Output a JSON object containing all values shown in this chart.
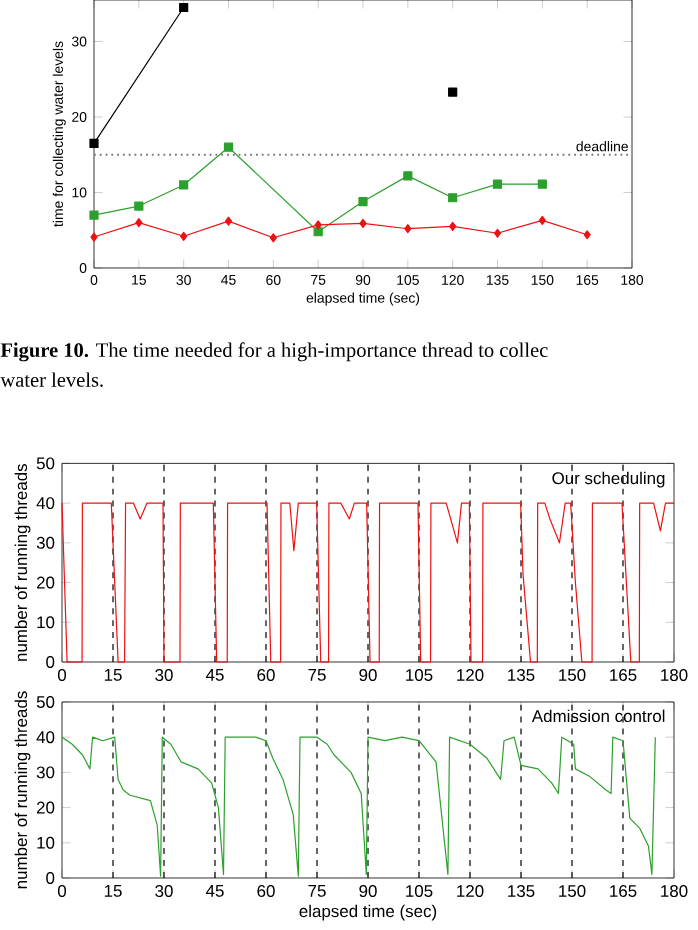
{
  "chart_data": [
    {
      "type": "line",
      "xlabel": "elapsed time (sec)",
      "ylabel": "time for collecting water levels",
      "xlim": [
        0,
        180
      ],
      "ylim": [
        0,
        35.5
      ],
      "xticks": [
        0,
        15,
        30,
        45,
        60,
        75,
        90,
        105,
        120,
        135,
        150,
        165,
        180
      ],
      "yticks": [
        0,
        10,
        20,
        30
      ],
      "x": [
        0,
        15,
        30,
        45,
        60,
        75,
        90,
        105,
        120,
        135,
        150,
        165
      ],
      "series": [
        {
          "color": "#000000",
          "marker": "square",
          "x": [
            0,
            30,
            45,
            105,
            120
          ],
          "values": [
            16.5,
            34.5,
            null,
            null,
            23.3
          ]
        },
        {
          "color": "#2ca02c",
          "marker": "square",
          "x": [
            0,
            15,
            30,
            45,
            75,
            90,
            105,
            120,
            135,
            150
          ],
          "values": [
            7,
            8.2,
            11,
            16,
            4.8,
            8.8,
            12.2,
            9.3,
            11.1,
            11.1
          ]
        },
        {
          "color": "#ee1111",
          "marker": "diamond",
          "values": [
            4.1,
            6,
            4.2,
            6.2,
            4,
            5.7,
            5.9,
            5.2,
            5.5,
            4.6,
            6.3,
            4.4
          ]
        }
      ],
      "ref_lines": [
        {
          "axis": "y",
          "value": 15,
          "label": "deadline",
          "color": "#777777",
          "line_style": "dotted"
        }
      ],
      "annotations": [
        "**Figure 10.** The time needed for a high-importance thread to collec",
        "water levels."
      ]
    },
    {
      "type": "line",
      "ylabel": "number of running threads",
      "xlim": [
        0,
        180
      ],
      "ylim": [
        0,
        50
      ],
      "xticks": [
        0,
        15,
        30,
        45,
        60,
        75,
        90,
        105,
        120,
        135,
        150,
        165,
        180
      ],
      "yticks": [
        0,
        10,
        20,
        30,
        40,
        50
      ],
      "marker": "none",
      "series": [
        {
          "name": "Our scheduling",
          "color": "#ee1111",
          "x": [
            0,
            1.5,
            5.9,
            6,
            14.5,
            16.5,
            18.4,
            18.7,
            21,
            23,
            25,
            29.7,
            30,
            34.7,
            34.8,
            44.5,
            45.5,
            48.6,
            48.7,
            60.3,
            61.4,
            64.3,
            64.4,
            67,
            68.2,
            69.5,
            74.9,
            76.1,
            78.4,
            78.5,
            82,
            84.5,
            86,
            89.6,
            90.6,
            93.3,
            93.4,
            104.7,
            105.5,
            108.4,
            108.5,
            113,
            116.3,
            117.5,
            119.8,
            120.3,
            123.7,
            123.8,
            134.9,
            135.6,
            137.8,
            139.8,
            139.9,
            142,
            143.5,
            146.3,
            148,
            149.6,
            151,
            152.9,
            155.9,
            156,
            164.7,
            167.3,
            169.8,
            169.9,
            174,
            176,
            177.5,
            180
          ],
          "values": [
            40,
            0,
            0,
            40,
            40,
            0,
            0,
            40,
            40,
            36,
            40,
            40,
            0,
            0,
            40,
            40,
            0,
            0,
            40,
            40,
            0,
            0,
            40,
            40,
            28,
            40,
            40,
            0,
            0,
            40,
            40,
            36,
            40,
            40,
            0,
            0,
            40,
            40,
            0,
            0,
            40,
            40,
            30,
            40,
            40,
            0,
            0,
            40,
            40,
            22,
            0,
            0,
            40,
            40,
            36,
            30,
            40,
            40,
            20,
            0,
            0,
            40,
            40,
            0,
            0,
            40,
            40,
            33,
            40,
            40
          ]
        }
      ],
      "ref_lines": [
        {
          "axis": "x",
          "value": 15
        },
        {
          "axis": "x",
          "value": 30
        },
        {
          "axis": "x",
          "value": 45
        },
        {
          "axis": "x",
          "value": 60
        },
        {
          "axis": "x",
          "value": 75
        },
        {
          "axis": "x",
          "value": 90
        },
        {
          "axis": "x",
          "value": 105
        },
        {
          "axis": "x",
          "value": 120
        },
        {
          "axis": "x",
          "value": 135
        },
        {
          "axis": "x",
          "value": 150
        },
        {
          "axis": "x",
          "value": 165
        }
      ],
      "legend": false
    },
    {
      "type": "line",
      "xlabel": "elapsed time (sec)",
      "ylabel": "number of running threads",
      "xlim": [
        0,
        180
      ],
      "ylim": [
        0,
        50
      ],
      "xticks": [
        0,
        15,
        30,
        45,
        60,
        75,
        90,
        105,
        120,
        135,
        150,
        165,
        180
      ],
      "yticks": [
        0,
        10,
        20,
        30,
        40,
        50
      ],
      "marker": "none",
      "series": [
        {
          "name": "Admission control",
          "color": "#2ca02c",
          "x": [
            0,
            3,
            6,
            8.2,
            9,
            12,
            15.5,
            16.5,
            18,
            20,
            26,
            28,
            29,
            29.5,
            32,
            35,
            40,
            44,
            46,
            47.5,
            48,
            55,
            57,
            60,
            62,
            65,
            68,
            69.5,
            70,
            75,
            78,
            80,
            85,
            88,
            89.5,
            90,
            95,
            100,
            105,
            110,
            113.5,
            114,
            120,
            125,
            129,
            130,
            133,
            135,
            140,
            144,
            146,
            147,
            150.5,
            151,
            155,
            160,
            161.5,
            162,
            165,
            167,
            170,
            172.5,
            173.5,
            174.5
          ],
          "values": [
            40,
            38,
            35,
            31,
            40,
            39,
            40,
            28,
            25,
            23.5,
            22,
            15,
            0.5,
            40,
            38,
            33,
            31,
            27,
            20,
            1,
            40,
            40,
            40,
            39,
            34,
            28,
            18,
            0.5,
            40,
            40,
            38,
            35,
            30,
            24,
            1,
            40,
            39,
            40,
            39,
            33,
            1,
            40,
            38,
            34,
            28,
            39,
            40,
            32,
            31,
            27,
            24,
            40,
            38,
            31,
            29,
            25,
            24,
            40,
            39,
            17,
            14,
            9,
            1,
            40
          ]
        }
      ],
      "ref_lines": [
        {
          "axis": "x",
          "value": 15
        },
        {
          "axis": "x",
          "value": 30
        },
        {
          "axis": "x",
          "value": 45
        },
        {
          "axis": "x",
          "value": 60
        },
        {
          "axis": "x",
          "value": 75
        },
        {
          "axis": "x",
          "value": 90
        },
        {
          "axis": "x",
          "value": 105
        },
        {
          "axis": "x",
          "value": 120
        },
        {
          "axis": "x",
          "value": 135
        },
        {
          "axis": "x",
          "value": 150
        },
        {
          "axis": "x",
          "value": 165
        }
      ],
      "legend": false
    }
  ]
}
